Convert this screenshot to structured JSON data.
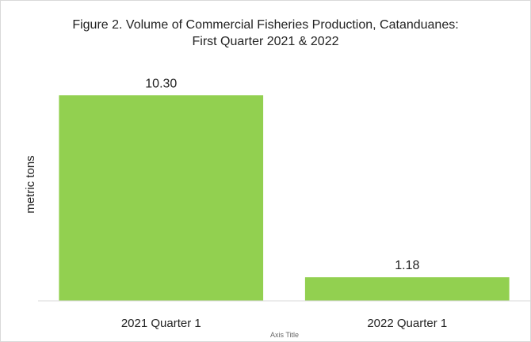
{
  "chart_data": {
    "type": "bar",
    "title_lines": [
      "Figure 2. Volume of Commercial Fisheries Production, Catanduanes:",
      "First Quarter 2021 & 2022"
    ],
    "categories": [
      "2021 Quarter 1",
      "2022 Quarter 1"
    ],
    "values": [
      10.3,
      1.18
    ],
    "data_labels": [
      "10.30",
      "1.18"
    ],
    "xlabel": "Axis Title",
    "ylabel": "metric tons",
    "ylim": [
      0,
      11.5
    ],
    "bar_color": "#92d050",
    "grid": false,
    "legend": "none"
  }
}
